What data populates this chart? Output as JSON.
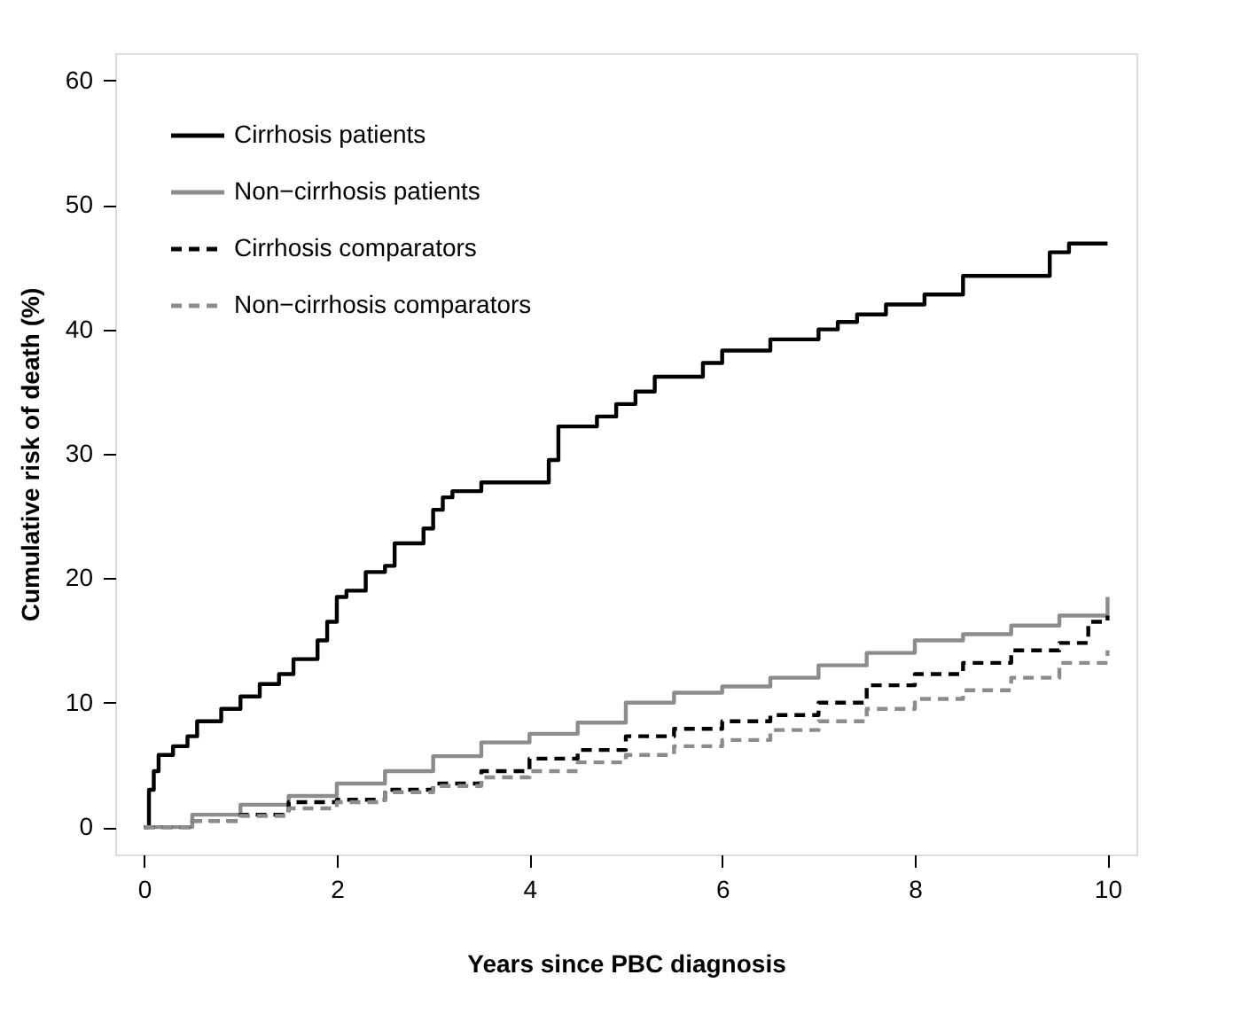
{
  "chart_data": {
    "type": "step",
    "xlabel": "Years since PBC diagnosis",
    "ylabel": "Cumulative risk of death (%)",
    "xlim": [
      -0.3,
      10.3
    ],
    "xticks": [
      0,
      2,
      4,
      6,
      8,
      10
    ],
    "ylim": [
      -2.2,
      62.2
    ],
    "yticks": [
      0,
      10,
      20,
      30,
      40,
      50,
      60
    ],
    "grid": false,
    "legend": "top left",
    "series": [
      {
        "name": "Cirrhosis patients",
        "color": "#000000",
        "line_style": "solid",
        "x": [
          0,
          0.05,
          0.1,
          0.15,
          0.3,
          0.45,
          0.55,
          0.8,
          1.0,
          1.2,
          1.4,
          1.55,
          1.8,
          1.9,
          2.0,
          2.1,
          2.3,
          2.5,
          2.6,
          2.9,
          3.0,
          3.1,
          3.2,
          3.5,
          4.2,
          4.3,
          4.7,
          4.9,
          5.1,
          5.3,
          5.8,
          6.0,
          6.5,
          7.0,
          7.2,
          7.4,
          7.7,
          8.1,
          8.5,
          9.4,
          9.6,
          10
        ],
        "values": [
          0,
          3,
          4.5,
          5.8,
          6.5,
          7.3,
          8.5,
          9.5,
          10.5,
          11.5,
          12.3,
          13.5,
          15,
          16.5,
          18.5,
          19,
          20.5,
          21,
          22.8,
          24,
          25.5,
          26.5,
          27,
          27.7,
          29.5,
          32.2,
          33,
          34,
          35,
          36.2,
          37.3,
          38.3,
          39.2,
          40,
          40.6,
          41.2,
          42,
          42.8,
          44.3,
          46.2,
          46.9,
          46.9
        ]
      },
      {
        "name": "Non−cirrhosis patients",
        "color": "#8c8c8c",
        "line_style": "solid",
        "x": [
          0,
          0.5,
          1,
          1.5,
          2,
          2.5,
          3,
          3.5,
          4,
          4.5,
          5,
          5.5,
          6,
          6.5,
          7,
          7.5,
          8,
          8.5,
          9,
          9.5,
          10
        ],
        "values": [
          0,
          1,
          1.8,
          2.5,
          3.5,
          4.5,
          5.7,
          6.8,
          7.5,
          8.4,
          10,
          10.8,
          11.3,
          12,
          13,
          14,
          15,
          15.5,
          16.2,
          17,
          18.5
        ]
      },
      {
        "name": "Cirrhosis comparators",
        "color": "#000000",
        "line_style": "dashed",
        "x": [
          0,
          0.5,
          1,
          1.5,
          2,
          2.5,
          3,
          3.5,
          4,
          4.5,
          5,
          5.5,
          6,
          6.5,
          7,
          7.5,
          8,
          8.5,
          9,
          9.5,
          9.8,
          10
        ],
        "values": [
          0,
          0.5,
          1,
          2,
          2.2,
          3,
          3.5,
          4.5,
          5.5,
          6.2,
          7.3,
          7.9,
          8.5,
          9,
          10,
          11.4,
          12.3,
          13.2,
          14.2,
          14.8,
          16.5,
          17
        ]
      },
      {
        "name": "Non−cirrhosis comparators",
        "color": "#8c8c8c",
        "line_style": "dashed",
        "x": [
          0,
          0.5,
          1,
          1.5,
          2,
          2.5,
          3,
          3.5,
          4,
          4.5,
          5,
          5.5,
          6,
          6.5,
          7,
          7.5,
          8,
          8.5,
          9,
          9.5,
          10
        ],
        "values": [
          0,
          0.5,
          0.9,
          1.5,
          2,
          2.8,
          3.3,
          4,
          4.5,
          5.2,
          5.8,
          6.5,
          7,
          7.8,
          8.5,
          9.5,
          10.3,
          11,
          12,
          13.2,
          14.2
        ]
      }
    ]
  }
}
